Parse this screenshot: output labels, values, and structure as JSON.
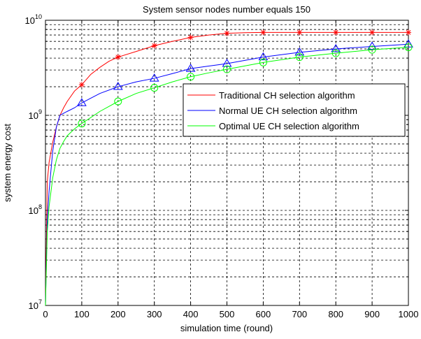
{
  "chart_data": {
    "type": "line",
    "title": "System sensor nodes number equals 150",
    "xlabel": "simulation time (round)",
    "ylabel": "system energy cost",
    "xlim": [
      0,
      1000
    ],
    "ylim": [
      10000000,
      10000000000
    ],
    "yscale": "log",
    "grid": true,
    "grid_style": "dashed",
    "legend_position": "right-middle",
    "x_ticks": [
      0,
      100,
      200,
      300,
      400,
      500,
      600,
      700,
      800,
      900,
      1000
    ],
    "x_tick_labels": [
      "0",
      "100",
      "200",
      "300",
      "400",
      "500",
      "600",
      "700",
      "800",
      "900",
      "1000"
    ],
    "y_tick_labels": [
      {
        "base": "10",
        "exp": "7",
        "value": 10000000
      },
      {
        "base": "10",
        "exp": "8",
        "value": 100000000
      },
      {
        "base": "10",
        "exp": "9",
        "value": 1000000000
      },
      {
        "base": "10",
        "exp": "10",
        "value": 10000000000
      }
    ],
    "marker_x": [
      100,
      200,
      300,
      400,
      500,
      600,
      700,
      800,
      900,
      1000
    ],
    "series": [
      {
        "name": "Traditional CH selection algorithm",
        "color": "#ff0000",
        "marker": "asterisk",
        "x": [
          0,
          5,
          10,
          20,
          30,
          40,
          50,
          60,
          80,
          100,
          125,
          150,
          175,
          200,
          250,
          300,
          350,
          400,
          450,
          500,
          550,
          600,
          700,
          800,
          900,
          1000
        ],
        "y": [
          10000000,
          200000000,
          320000000,
          520000000,
          750000000,
          1000000000,
          1200000000,
          1400000000,
          1800000000,
          2100000000,
          2700000000,
          3200000000,
          3700000000,
          4100000000,
          4700000000,
          5400000000,
          6000000000,
          6600000000,
          7000000000,
          7300000000,
          7400000000,
          7450000000,
          7450000000,
          7450000000,
          7450000000,
          7450000000
        ]
      },
      {
        "name": "Normal UE CH selection algorithm",
        "color": "#0000ff",
        "marker": "triangle",
        "x": [
          0,
          5,
          10,
          20,
          30,
          40,
          50,
          60,
          80,
          100,
          150,
          200,
          250,
          300,
          350,
          400,
          450,
          500,
          600,
          700,
          800,
          900,
          1000
        ],
        "y": [
          10000000,
          80000000,
          160000000,
          420000000,
          750000000,
          1000000000,
          1050000000,
          1100000000,
          1200000000,
          1350000000,
          1700000000,
          2000000000,
          2250000000,
          2450000000,
          2750000000,
          3100000000,
          3300000000,
          3500000000,
          4100000000,
          4600000000,
          5000000000,
          5300000000,
          5600000000
        ]
      },
      {
        "name": "Optimal UE CH selection algorithm",
        "color": "#00ff00",
        "marker": "circle",
        "x": [
          0,
          5,
          10,
          20,
          30,
          40,
          50,
          60,
          80,
          100,
          150,
          200,
          250,
          300,
          350,
          400,
          450,
          500,
          600,
          700,
          800,
          900,
          1000
        ],
        "y": [
          10000000,
          60000000,
          110000000,
          220000000,
          340000000,
          450000000,
          530000000,
          610000000,
          720000000,
          820000000,
          1100000000,
          1400000000,
          1700000000,
          1950000000,
          2250000000,
          2550000000,
          2800000000,
          3050000000,
          3600000000,
          4100000000,
          4500000000,
          4900000000,
          5200000000
        ]
      }
    ]
  }
}
